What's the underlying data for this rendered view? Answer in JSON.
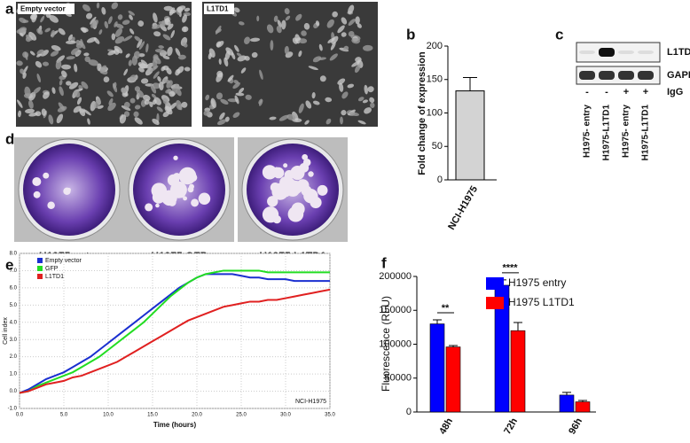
{
  "panel_labels": [
    "a",
    "b",
    "c",
    "d",
    "e",
    "f"
  ],
  "micrographs": [
    "Empty vector",
    "L1TD1"
  ],
  "blot": {
    "bands": [
      "L1TD1",
      "GAPDH"
    ],
    "igg_label": "IgG",
    "igg": [
      "-",
      "-",
      "+",
      "+"
    ],
    "lanes": [
      "H1975- entry",
      "H1975-L1TD1",
      "H1975- entry",
      "H1975-L1TD1"
    ]
  },
  "plates": [
    "H1975 entry",
    "H1975 GFP",
    "H1975 L1TD1"
  ],
  "chart_data": [
    {
      "type": "bar",
      "ylabel": "Fold change of expression",
      "categories": [
        "NCI-H1975"
      ],
      "values": [
        133
      ],
      "errors": [
        20
      ],
      "color": "#d3d3d3",
      "ylim": [
        0,
        200
      ],
      "yticks": [
        0,
        50,
        100,
        150,
        200
      ]
    },
    {
      "type": "line",
      "xlabel": "Time (hours)",
      "ylabel": "Cell index",
      "annotation": "NCI-H1975",
      "grid": true,
      "legend": "top-left",
      "x": [
        0,
        1,
        2,
        3,
        4,
        5,
        6,
        7,
        8,
        9,
        10,
        11,
        12,
        13,
        14,
        15,
        16,
        17,
        18,
        19,
        20,
        21,
        22,
        23,
        24,
        25,
        26,
        27,
        28,
        29,
        30,
        31,
        32,
        33,
        34,
        35
      ],
      "series": [
        {
          "name": "Empty vector",
          "color": "#1a2fd0",
          "values": [
            -0.1,
            0.1,
            0.4,
            0.7,
            0.9,
            1.1,
            1.4,
            1.7,
            2.0,
            2.4,
            2.8,
            3.2,
            3.6,
            4.0,
            4.4,
            4.8,
            5.2,
            5.6,
            6.0,
            6.3,
            6.6,
            6.8,
            6.8,
            6.8,
            6.8,
            6.7,
            6.6,
            6.6,
            6.5,
            6.5,
            6.5,
            6.4,
            6.4,
            6.4,
            6.4,
            6.4
          ]
        },
        {
          "name": "GFP",
          "color": "#22dd22",
          "values": [
            -0.1,
            0.0,
            0.3,
            0.5,
            0.7,
            0.9,
            1.1,
            1.4,
            1.7,
            2.0,
            2.4,
            2.8,
            3.2,
            3.6,
            4.0,
            4.5,
            5.0,
            5.5,
            5.9,
            6.3,
            6.6,
            6.8,
            6.9,
            7.0,
            7.0,
            7.0,
            7.0,
            7.0,
            6.9,
            6.9,
            6.9,
            6.9,
            6.9,
            6.9,
            6.9,
            6.9
          ]
        },
        {
          "name": "L1TD1",
          "color": "#e02020",
          "values": [
            -0.1,
            0.0,
            0.2,
            0.4,
            0.5,
            0.6,
            0.8,
            0.9,
            1.1,
            1.3,
            1.5,
            1.7,
            2.0,
            2.3,
            2.6,
            2.9,
            3.2,
            3.5,
            3.8,
            4.1,
            4.3,
            4.5,
            4.7,
            4.9,
            5.0,
            5.1,
            5.2,
            5.2,
            5.3,
            5.3,
            5.4,
            5.5,
            5.6,
            5.7,
            5.8,
            5.9
          ]
        }
      ],
      "xlim": [
        0,
        35
      ],
      "xticks": [
        {
          "value": 0,
          "label": "0.0"
        },
        {
          "value": 5,
          "label": "5.0"
        },
        {
          "value": 10,
          "label": "10.0"
        },
        {
          "value": 15,
          "label": "15.0"
        },
        {
          "value": 20,
          "label": "20.0"
        },
        {
          "value": 25,
          "label": "25.0"
        },
        {
          "value": 30,
          "label": "30.0"
        },
        {
          "value": 35,
          "label": "35.0"
        }
      ],
      "ylim": [
        -1,
        8
      ],
      "yticks": [
        {
          "value": -1,
          "label": "-1.0"
        },
        {
          "value": 0,
          "label": "0.0"
        },
        {
          "value": 1,
          "label": "1.0"
        },
        {
          "value": 2,
          "label": "2.0"
        },
        {
          "value": 3,
          "label": "3.0"
        },
        {
          "value": 4,
          "label": "4.0"
        },
        {
          "value": 5,
          "label": "5.0"
        },
        {
          "value": 6,
          "label": "6.0"
        },
        {
          "value": 7,
          "label": "7.0"
        },
        {
          "value": 8,
          "label": "8.0"
        }
      ]
    },
    {
      "type": "grouped_bar",
      "ylabel": "Fluorescence (RFU)",
      "categories": [
        "48h",
        "72h",
        "96h"
      ],
      "significance": [
        "**",
        "****",
        null
      ],
      "legend": "top-right",
      "series": [
        {
          "name": "H1975 entry",
          "color": "#0000ff",
          "values": [
            130000,
            187000,
            25000
          ],
          "errors": [
            6000,
            8000,
            4000
          ]
        },
        {
          "name": "H1975 L1TD1",
          "color": "#ff0000",
          "values": [
            96000,
            120000,
            15000
          ],
          "errors": [
            2000,
            12000,
            2000
          ]
        }
      ],
      "ylim": [
        0,
        200000
      ],
      "yticks": [
        0,
        50000,
        100000,
        150000,
        200000
      ]
    }
  ]
}
